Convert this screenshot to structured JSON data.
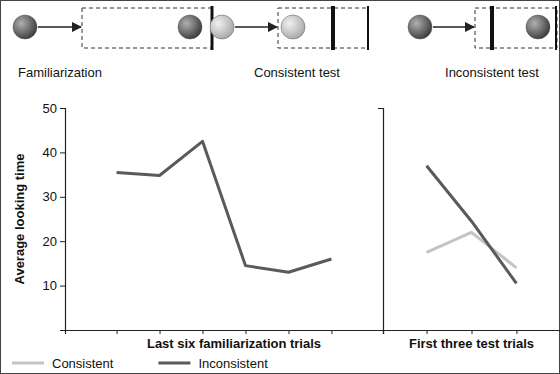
{
  "diagram": {
    "labels": [
      "Familiarization",
      "Consistent test",
      "Inconsistent test"
    ]
  },
  "chart_data": [
    {
      "type": "line",
      "x_label": "Last six familiarization trials",
      "y_label": "Average looking time",
      "categories": [
        null,
        null,
        null,
        null,
        null,
        null
      ],
      "series": [
        {
          "color": "#5a5a5a",
          "values": [
            35.5,
            34.8,
            42.5,
            14.5,
            13,
            16
          ]
        }
      ],
      "ylim": [
        0,
        50
      ],
      "yticks": [
        10,
        20,
        30,
        40,
        50
      ],
      "tick_labels": "y"
    },
    {
      "type": "line",
      "x_label": "First three test trials",
      "categories": [
        null,
        null,
        null
      ],
      "series": [
        {
          "name": "Consistent",
          "color": "#c4c4c4",
          "values": [
            17.5,
            22,
            14
          ]
        },
        {
          "name": "Inconsistent",
          "color": "#5a5a5a",
          "values": [
            37,
            24.5,
            10.5
          ]
        }
      ],
      "ylim": [
        0,
        50
      ],
      "tick_labels": false,
      "legend": "bottom left"
    }
  ]
}
